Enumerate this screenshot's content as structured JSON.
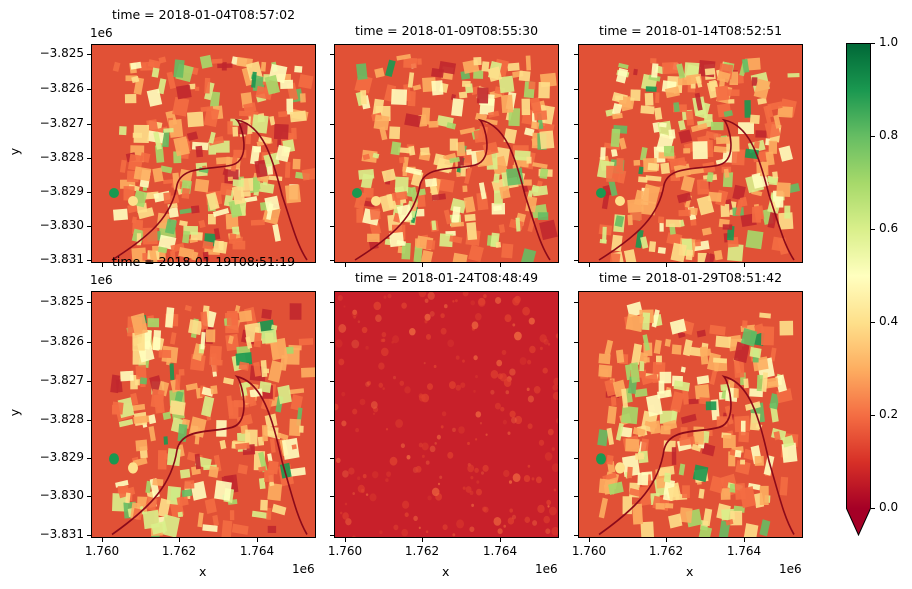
{
  "figure": {
    "colormap": "RdYlGn",
    "colors": {
      "low": "#a50026",
      "mid": "#ffffbf",
      "high": "#006837"
    }
  },
  "panels": [
    {
      "title": "time = 2018-01-04T08:57:02",
      "row": 0,
      "col": 0,
      "kind": "fields"
    },
    {
      "title": "time = 2018-01-09T08:55:30",
      "row": 0,
      "col": 1,
      "kind": "fields"
    },
    {
      "title": "time = 2018-01-14T08:52:51",
      "row": 0,
      "col": 2,
      "kind": "fields"
    },
    {
      "title": "time = 2018-01-19T08:51:19",
      "row": 1,
      "col": 0,
      "kind": "fields"
    },
    {
      "title": "time = 2018-01-24T08:48:49",
      "row": 1,
      "col": 1,
      "kind": "cloud"
    },
    {
      "title": "time = 2018-01-29T08:51:42",
      "row": 1,
      "col": 2,
      "kind": "fields"
    }
  ],
  "axes": {
    "xlabel": "x",
    "ylabel": "y",
    "x_offset": "1e6",
    "y_offset": "1e6",
    "xticks": [
      "1.760",
      "1.762",
      "1.764"
    ],
    "yticks": [
      "−3.825",
      "−3.826",
      "−3.827",
      "−3.828",
      "−3.829",
      "−3.830",
      "−3.831"
    ]
  },
  "colorbar": {
    "ticks": [
      "1.0",
      "0.8",
      "0.6",
      "0.4",
      "0.2",
      "0.0"
    ],
    "extend": "min"
  },
  "chart_data": {
    "type": "heatmap",
    "title": "",
    "subplots": [
      {
        "title": "time = 2018-01-04T08:57:02",
        "description": "agricultural fields, mostly red/orange with yellow-green field parcels, river meandering through center"
      },
      {
        "title": "time = 2018-01-09T08:55:30",
        "description": "agricultural fields, similar pattern"
      },
      {
        "title": "time = 2018-01-14T08:52:51",
        "description": "agricultural fields, similar pattern"
      },
      {
        "title": "time = 2018-01-19T08:51:19",
        "description": "agricultural fields, similar pattern"
      },
      {
        "title": "time = 2018-01-24T08:48:49",
        "description": "cloud covered, uniformly low values (~0.1)"
      },
      {
        "title": "time = 2018-01-29T08:51:42",
        "description": "agricultural fields, similar pattern"
      }
    ],
    "xlabel": "x",
    "ylabel": "y",
    "x_ticks": [
      1760000,
      1762000,
      1764000
    ],
    "y_ticks": [
      -3825000,
      -3826000,
      -3827000,
      -3828000,
      -3829000,
      -3830000,
      -3831000
    ],
    "xlim": [
      1759750,
      1765450
    ],
    "ylim": [
      -3831350,
      -3824750
    ],
    "colorbar": {
      "label": "",
      "vmin": 0.0,
      "vmax": 1.0,
      "ticks": [
        0.0,
        0.2,
        0.4,
        0.6,
        0.8,
        1.0
      ],
      "cmap": "RdYlGn",
      "extend": "min"
    },
    "grid": false,
    "legend": null
  }
}
